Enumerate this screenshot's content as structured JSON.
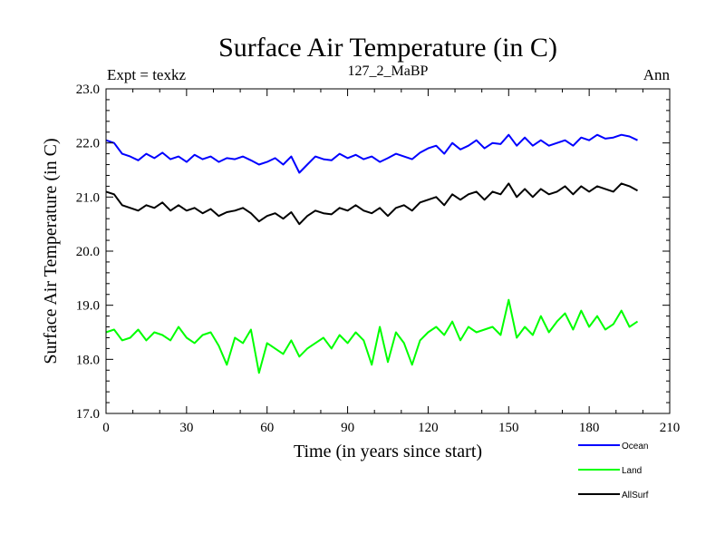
{
  "chart_data": {
    "type": "line",
    "title": "Surface Air Temperature (in C)",
    "subtitle": "127_2_MaBP",
    "left_label": "Expt = texkz",
    "right_label": "Ann",
    "xlabel": "Time (in years since start)",
    "ylabel": "Surface Air Temperature (in C)",
    "xlim": [
      0,
      210
    ],
    "ylim": [
      17.0,
      23.0
    ],
    "x_ticks": [
      0,
      30,
      60,
      90,
      120,
      150,
      180,
      210
    ],
    "x_tick_labels": [
      "0",
      "30",
      "60",
      "90",
      "120",
      "150",
      "180",
      "210"
    ],
    "y_ticks": [
      17.0,
      18.0,
      19.0,
      20.0,
      21.0,
      22.0,
      23.0
    ],
    "y_tick_labels": [
      "17.0",
      "18.0",
      "19.0",
      "20.0",
      "21.0",
      "22.0",
      "23.0"
    ],
    "legend_position": "bottom-right",
    "series": [
      {
        "name": "Ocean",
        "color": "#0000ff",
        "x": [
          0,
          3,
          6,
          9,
          12,
          15,
          18,
          21,
          24,
          27,
          30,
          33,
          36,
          39,
          42,
          45,
          48,
          51,
          54,
          57,
          60,
          63,
          66,
          69,
          72,
          75,
          78,
          81,
          84,
          87,
          90,
          93,
          96,
          99,
          102,
          105,
          108,
          111,
          114,
          117,
          120,
          123,
          126,
          129,
          132,
          135,
          138,
          141,
          144,
          147,
          150,
          153,
          156,
          159,
          162,
          165,
          168,
          171,
          174,
          177,
          180,
          183,
          186,
          189,
          192,
          195,
          198
        ],
        "values": [
          22.05,
          22.0,
          21.8,
          21.75,
          21.68,
          21.8,
          21.72,
          21.82,
          21.7,
          21.75,
          21.65,
          21.78,
          21.7,
          21.75,
          21.65,
          21.72,
          21.7,
          21.75,
          21.68,
          21.6,
          21.65,
          21.72,
          21.6,
          21.75,
          21.45,
          21.6,
          21.75,
          21.7,
          21.68,
          21.8,
          21.72,
          21.78,
          21.7,
          21.75,
          21.65,
          21.72,
          21.8,
          21.75,
          21.7,
          21.82,
          21.9,
          21.95,
          21.8,
          22.0,
          21.88,
          21.95,
          22.05,
          21.9,
          22.0,
          21.98,
          22.15,
          21.95,
          22.1,
          21.95,
          22.05,
          21.95,
          22.0,
          22.05,
          21.95,
          22.1,
          22.05,
          22.15,
          22.08,
          22.1,
          22.15,
          22.12,
          22.05
        ]
      },
      {
        "name": "Land",
        "color": "#00ff00",
        "x": [
          0,
          3,
          6,
          9,
          12,
          15,
          18,
          21,
          24,
          27,
          30,
          33,
          36,
          39,
          42,
          45,
          48,
          51,
          54,
          57,
          60,
          63,
          66,
          69,
          72,
          75,
          78,
          81,
          84,
          87,
          90,
          93,
          96,
          99,
          102,
          105,
          108,
          111,
          114,
          117,
          120,
          123,
          126,
          129,
          132,
          135,
          138,
          141,
          144,
          147,
          150,
          153,
          156,
          159,
          162,
          165,
          168,
          171,
          174,
          177,
          180,
          183,
          186,
          189,
          192,
          195,
          198
        ],
        "values": [
          18.5,
          18.55,
          18.35,
          18.4,
          18.55,
          18.35,
          18.5,
          18.45,
          18.35,
          18.6,
          18.4,
          18.3,
          18.45,
          18.5,
          18.25,
          17.9,
          18.4,
          18.3,
          18.55,
          17.75,
          18.3,
          18.2,
          18.1,
          18.35,
          18.05,
          18.2,
          18.3,
          18.4,
          18.2,
          18.45,
          18.3,
          18.5,
          18.35,
          17.9,
          18.6,
          17.95,
          18.5,
          18.3,
          17.9,
          18.35,
          18.5,
          18.6,
          18.45,
          18.7,
          18.35,
          18.6,
          18.5,
          18.55,
          18.6,
          18.45,
          19.1,
          18.4,
          18.6,
          18.45,
          18.8,
          18.5,
          18.7,
          18.85,
          18.55,
          18.9,
          18.6,
          18.8,
          18.55,
          18.65,
          18.9,
          18.6,
          18.7
        ]
      },
      {
        "name": "AllSurf",
        "color": "#000000",
        "x": [
          0,
          3,
          6,
          9,
          12,
          15,
          18,
          21,
          24,
          27,
          30,
          33,
          36,
          39,
          42,
          45,
          48,
          51,
          54,
          57,
          60,
          63,
          66,
          69,
          72,
          75,
          78,
          81,
          84,
          87,
          90,
          93,
          96,
          99,
          102,
          105,
          108,
          111,
          114,
          117,
          120,
          123,
          126,
          129,
          132,
          135,
          138,
          141,
          144,
          147,
          150,
          153,
          156,
          159,
          162,
          165,
          168,
          171,
          174,
          177,
          180,
          183,
          186,
          189,
          192,
          195,
          198
        ],
        "values": [
          21.1,
          21.05,
          20.85,
          20.8,
          20.75,
          20.85,
          20.8,
          20.9,
          20.75,
          20.85,
          20.75,
          20.8,
          20.7,
          20.78,
          20.65,
          20.72,
          20.75,
          20.8,
          20.7,
          20.55,
          20.65,
          20.7,
          20.6,
          20.72,
          20.5,
          20.65,
          20.75,
          20.7,
          20.68,
          20.8,
          20.75,
          20.85,
          20.75,
          20.7,
          20.8,
          20.65,
          20.8,
          20.85,
          20.75,
          20.9,
          20.95,
          21.0,
          20.85,
          21.05,
          20.95,
          21.05,
          21.1,
          20.95,
          21.1,
          21.05,
          21.25,
          21.0,
          21.15,
          21.0,
          21.15,
          21.05,
          21.1,
          21.2,
          21.05,
          21.2,
          21.1,
          21.2,
          21.15,
          21.1,
          21.25,
          21.2,
          21.12
        ]
      }
    ]
  }
}
